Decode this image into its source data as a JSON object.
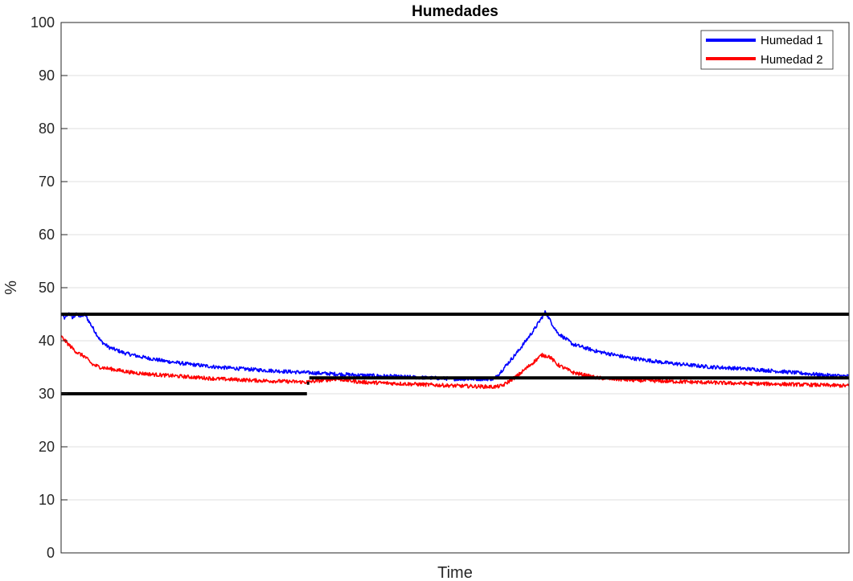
{
  "chart_data": {
    "type": "line",
    "title": "Humedades",
    "xlabel": "Time",
    "ylabel": "%",
    "xlim": [
      0,
      100
    ],
    "ylim": [
      0,
      100
    ],
    "yticks": [
      0,
      10,
      20,
      30,
      40,
      50,
      60,
      70,
      80,
      90,
      100
    ],
    "ytick_labels": [
      "0",
      "10",
      "20",
      "30",
      "40",
      "50",
      "60",
      "70",
      "80",
      "90",
      "100"
    ],
    "grid": true,
    "legend_position": "top-right",
    "series": [
      {
        "name": "Humedad 1",
        "color": "#0000ff",
        "x": [
          0,
          0.5,
          1,
          1.5,
          2,
          2.5,
          3,
          4,
          5,
          6,
          8,
          10,
          13,
          16,
          20,
          25,
          31,
          38,
          45,
          50,
          55,
          56,
          58,
          60,
          61.5,
          62,
          63,
          65,
          68,
          72,
          77,
          82,
          88,
          93,
          97,
          100
        ],
        "values": [
          45,
          44.2,
          45.2,
          44.3,
          45.1,
          44.5,
          45,
          42.5,
          40,
          38.8,
          37.7,
          37,
          36.2,
          35.6,
          35,
          34.5,
          34,
          33.5,
          33.1,
          32.8,
          32.8,
          34.5,
          38,
          42,
          45.5,
          44,
          41.5,
          39.3,
          38,
          36.8,
          35.8,
          35.1,
          34.6,
          34,
          33.5,
          33.3
        ]
      },
      {
        "name": "Humedad 2",
        "color": "#ff0000",
        "x": [
          0,
          1,
          2,
          3,
          4,
          5,
          7,
          9,
          12,
          15,
          20,
          25,
          31,
          35,
          38,
          45,
          50,
          55,
          56,
          58,
          60,
          61,
          62,
          63,
          65,
          68,
          72,
          78,
          85,
          92,
          100
        ],
        "values": [
          40.8,
          39.2,
          37.8,
          37,
          35.5,
          35,
          34.5,
          34,
          33.6,
          33.3,
          32.8,
          32.5,
          32.2,
          32.8,
          32.2,
          31.8,
          31.5,
          31.3,
          31.5,
          33.5,
          36,
          37.3,
          37,
          35.5,
          34,
          33,
          32.6,
          32.3,
          32,
          31.8,
          31.5
        ]
      },
      {
        "color": "#000000",
        "segments": [
          {
            "x": [
              0,
              100
            ],
            "values": [
              45,
              45
            ]
          },
          {
            "x": [
              0,
              31.2
            ],
            "values": [
              30,
              30
            ]
          },
          {
            "x": [
              31.2,
              31.5
            ],
            "values": [
              32,
              32
            ]
          },
          {
            "x": [
              31.5,
              100
            ],
            "values": [
              33,
              33
            ]
          }
        ]
      }
    ]
  }
}
